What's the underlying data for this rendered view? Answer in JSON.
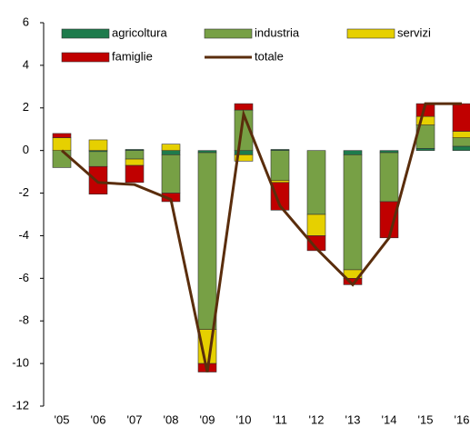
{
  "chart_data": {
    "type": "bar",
    "stacked": true,
    "grid": false,
    "categories": [
      "'05",
      "'06",
      "'07",
      "'08",
      "'09",
      "'10",
      "'11",
      "'12",
      "'13",
      "'14",
      "'15",
      "'16"
    ],
    "ylim": [
      -12,
      6
    ],
    "yticks": [
      -12,
      -10,
      -8,
      -6,
      -4,
      -2,
      0,
      2,
      4,
      6
    ],
    "series": [
      {
        "name": "agricoltura",
        "color": "#1e7b4c",
        "values": [
          0,
          -0.05,
          0.05,
          -0.2,
          -0.1,
          -0.2,
          0.05,
          0,
          -0.2,
          -0.1,
          0.1,
          0.2
        ]
      },
      {
        "name": "industria",
        "color": "#77a045",
        "values": [
          -0.8,
          -0.7,
          -0.4,
          -1.8,
          -8.3,
          1.9,
          -1.4,
          -3.0,
          -5.4,
          -2.3,
          1.1,
          0.4
        ]
      },
      {
        "name": "servizi",
        "color": "#e6d000",
        "values": [
          0.6,
          0.5,
          -0.3,
          0.3,
          -1.6,
          -0.3,
          -0.1,
          -1.0,
          -0.4,
          0,
          0.4,
          0.3
        ]
      },
      {
        "name": "famiglie",
        "color": "#c00000",
        "values": [
          0.2,
          -1.3,
          -0.8,
          -0.4,
          -0.4,
          0.3,
          -1.3,
          -0.7,
          -0.3,
          -1.7,
          0.6,
          1.3
        ]
      },
      {
        "name": "totale",
        "type": "line",
        "color": "#5a2d0c",
        "values": [
          0,
          -1.5,
          -1.6,
          -2.3,
          -10.4,
          1.7,
          -2.6,
          -4.6,
          -6.3,
          -4.1,
          2.2,
          2.2
        ]
      }
    ]
  }
}
